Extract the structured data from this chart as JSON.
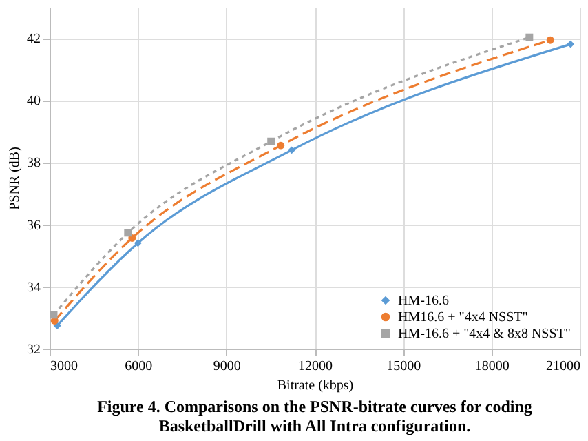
{
  "chart_data": {
    "type": "line",
    "title": [
      "Figure 4. Comparisons on the PSNR-bitrate curves for coding",
      "BasketballDrill with All Intra configuration."
    ],
    "xlabel": "Bitrate (kbps)",
    "ylabel": "PSNR (dB)",
    "xlim": [
      3000,
      21000
    ],
    "xticks": [
      3000,
      6000,
      9000,
      12000,
      15000,
      18000,
      21000
    ],
    "ylim": [
      32,
      43
    ],
    "yticks": [
      32,
      34,
      36,
      38,
      40,
      42
    ],
    "grid": true,
    "legend": "bottom right",
    "series": [
      {
        "name": "HM-16.6",
        "color": "#5b9bd5",
        "marker": "diamond",
        "line_style": "solid",
        "x": [
          3260,
          6000,
          11220,
          20690
        ],
        "values": [
          32.74,
          35.4,
          38.39,
          41.8
        ]
      },
      {
        "name": "HM16.6 + \"4x4 NSST\"",
        "color": "#ed7d31",
        "marker": "circle",
        "line_style": "dashed",
        "x": [
          3170,
          5800,
          10850,
          20000
        ],
        "values": [
          32.9,
          35.56,
          38.54,
          41.93
        ]
      },
      {
        "name": "HM-16.6 + \"4x4 & 8x8 NSST\"",
        "color": "#a5a5a5",
        "marker": "square",
        "line_style": "dotted",
        "x": [
          3140,
          5660,
          10520,
          19290
        ],
        "values": [
          33.09,
          35.73,
          38.67,
          42.02
        ]
      }
    ]
  }
}
